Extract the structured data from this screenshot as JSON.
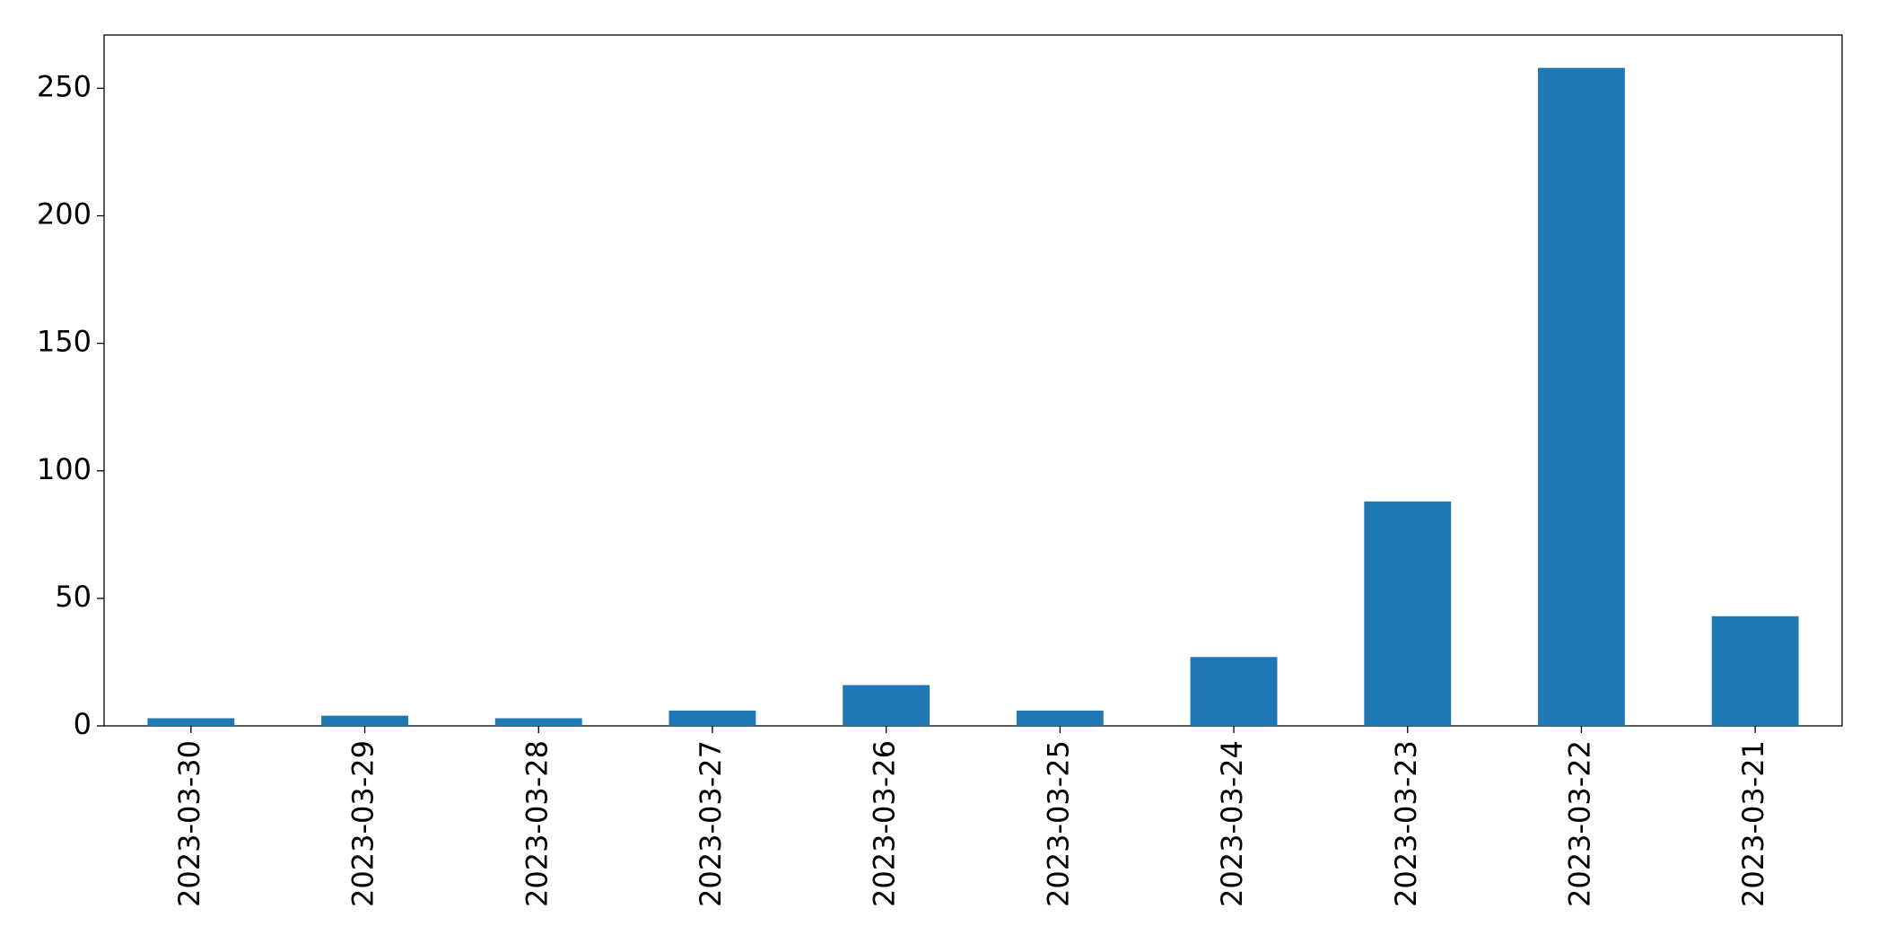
{
  "chart_data": {
    "type": "bar",
    "categories": [
      "2023-03-30",
      "2023-03-29",
      "2023-03-28",
      "2023-03-27",
      "2023-03-26",
      "2023-03-25",
      "2023-03-24",
      "2023-03-23",
      "2023-03-22",
      "2023-03-21"
    ],
    "values": [
      3,
      4,
      3,
      6,
      16,
      6,
      27,
      88,
      258,
      43
    ],
    "color": "#1f77b4",
    "ylim": [
      0,
      270.9
    ],
    "yticks": [
      0,
      50,
      100,
      150,
      200,
      250
    ],
    "grid": false
  }
}
